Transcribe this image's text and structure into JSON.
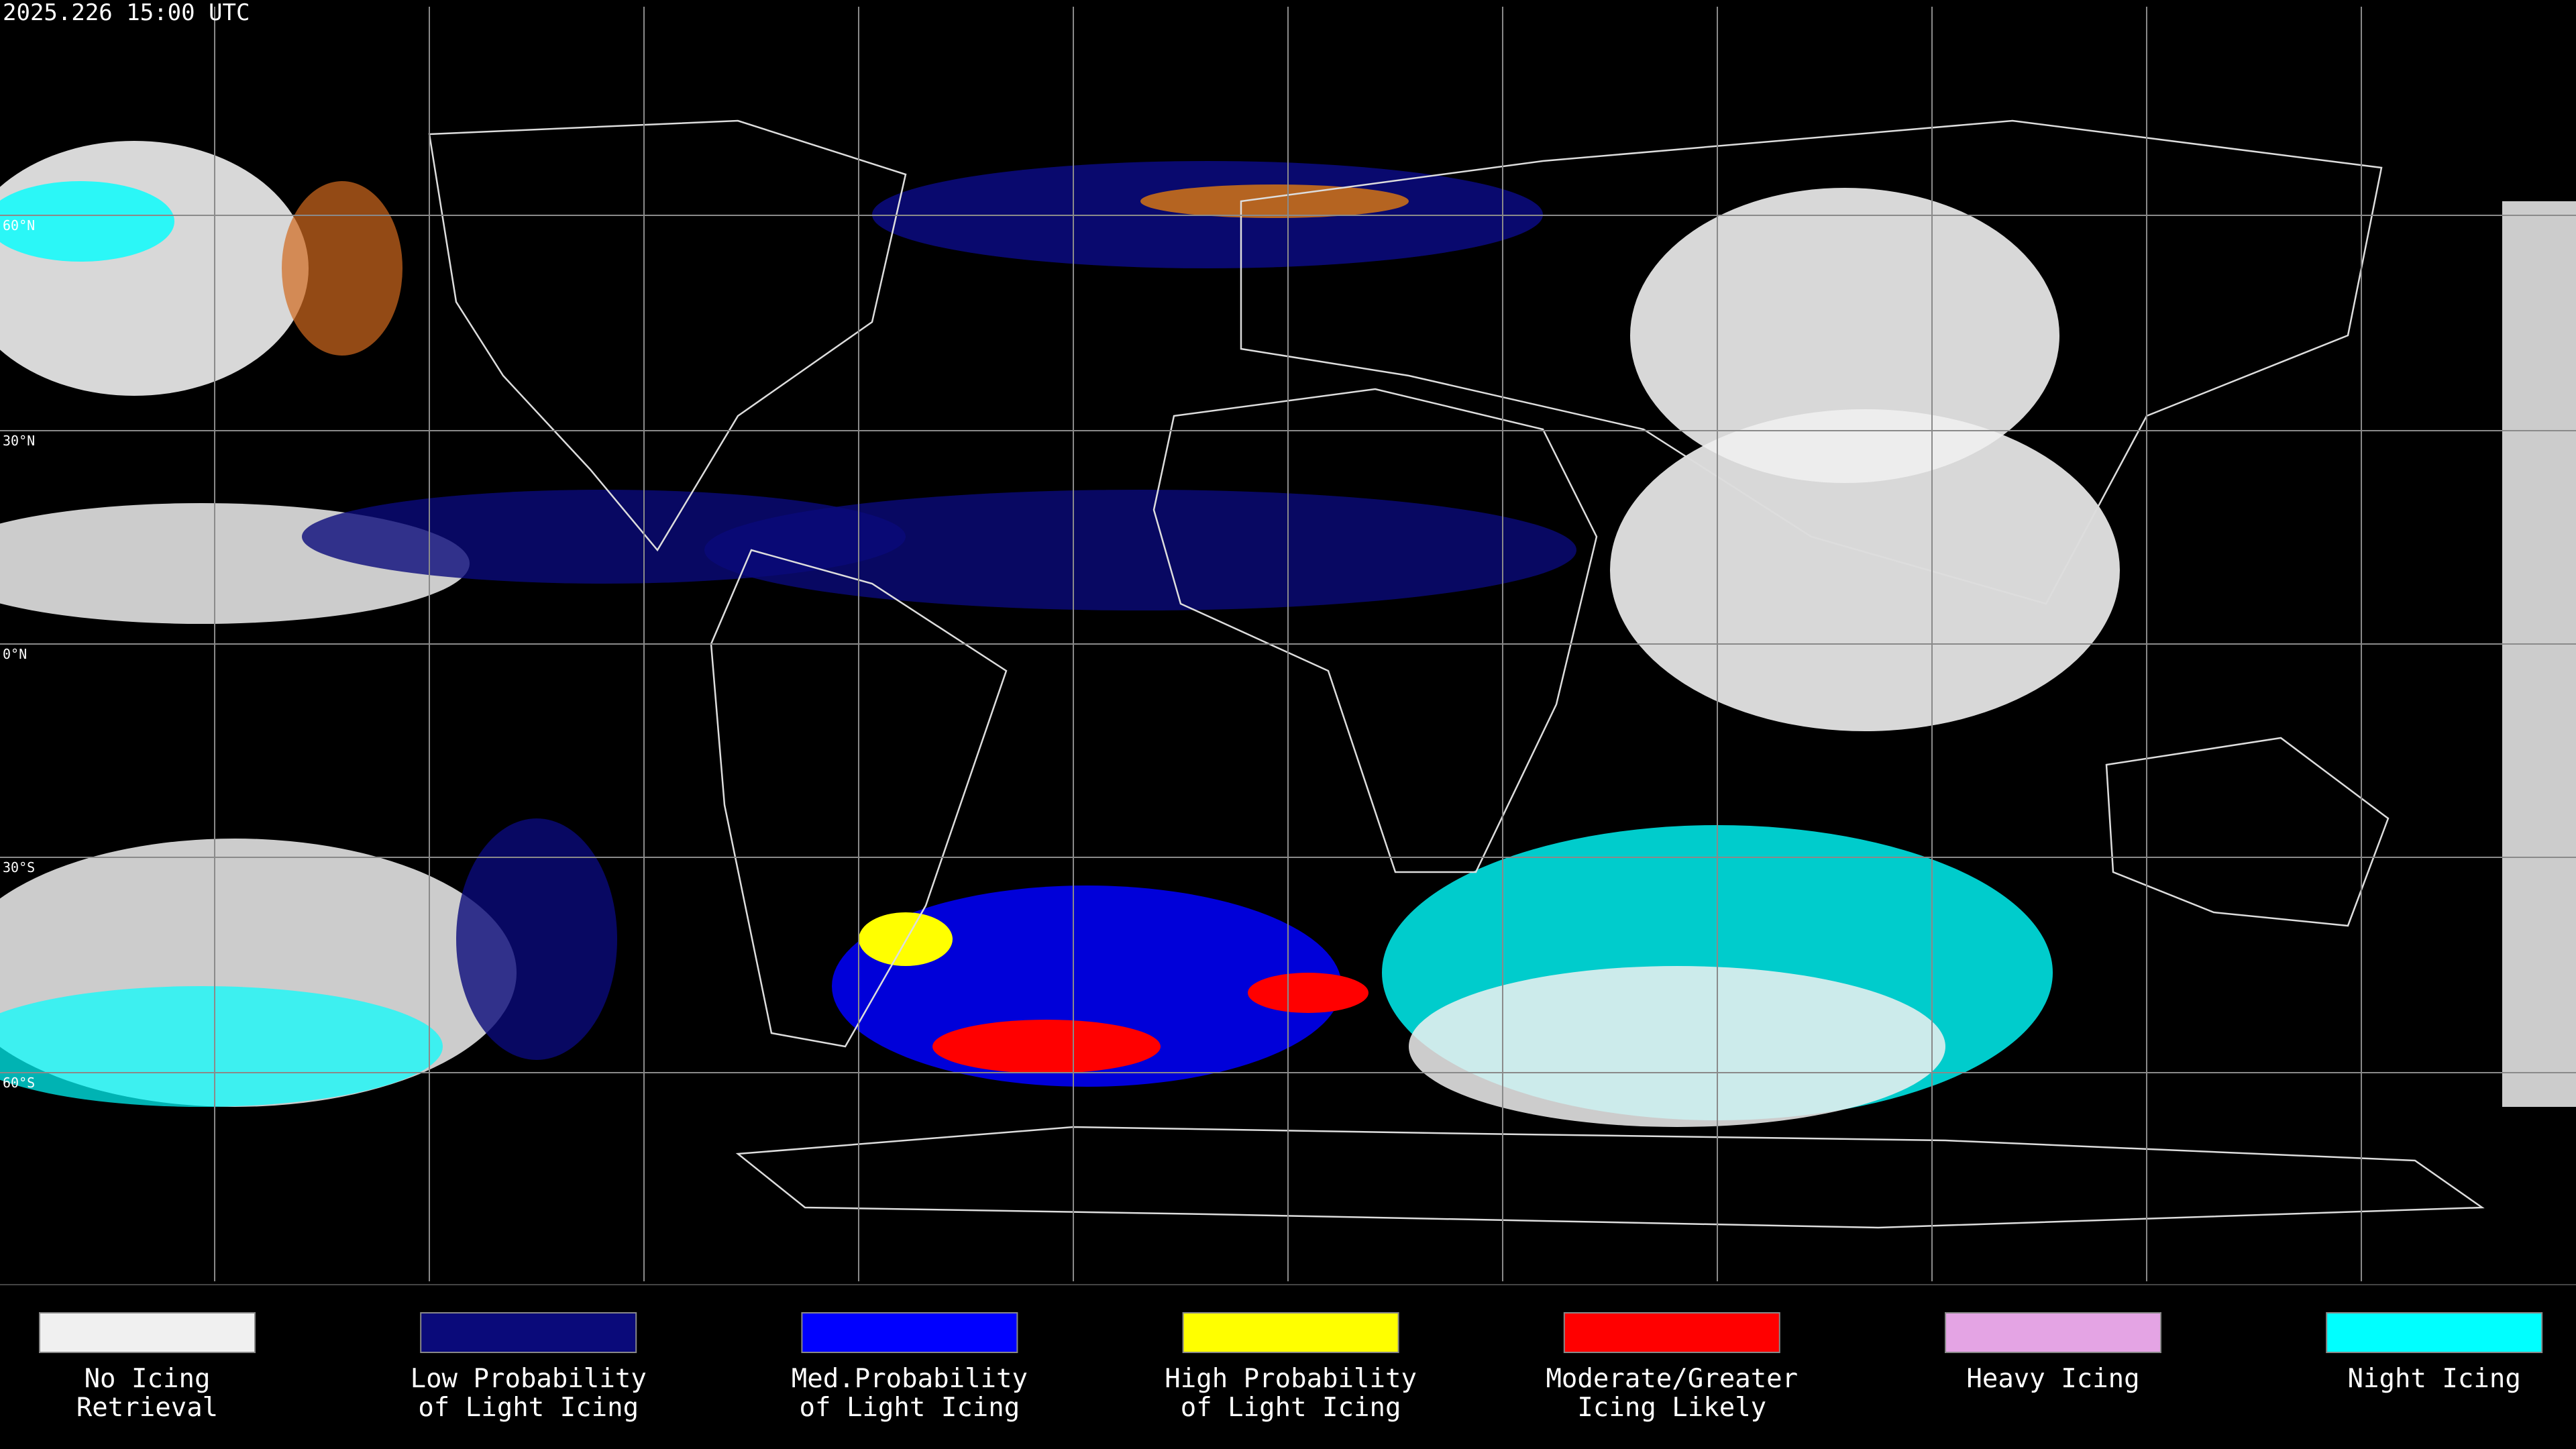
{
  "header": {
    "title": "2025.226 15:00 UTC"
  },
  "map": {
    "latitude_labels": [
      "60°N",
      "30°N",
      "0°N",
      "30°S",
      "60°S"
    ]
  },
  "legend": {
    "items": [
      {
        "lines": [
          "No Icing",
          "Retrieval"
        ],
        "color": "#f0f0f0"
      },
      {
        "lines": [
          "Low Probability",
          "of Light Icing"
        ],
        "color": "#0a0a7a"
      },
      {
        "lines": [
          "Med.Probability",
          "of Light Icing"
        ],
        "color": "#0000ff"
      },
      {
        "lines": [
          "High Probability",
          "of Light Icing"
        ],
        "color": "#ffff00"
      },
      {
        "lines": [
          "Moderate/Greater",
          "Icing Likely"
        ],
        "color": "#ff0000"
      },
      {
        "lines": [
          "Heavy Icing"
        ],
        "color": "#e4a4e4"
      },
      {
        "lines": [
          "Night Icing"
        ],
        "color": "#00ffff"
      }
    ]
  }
}
